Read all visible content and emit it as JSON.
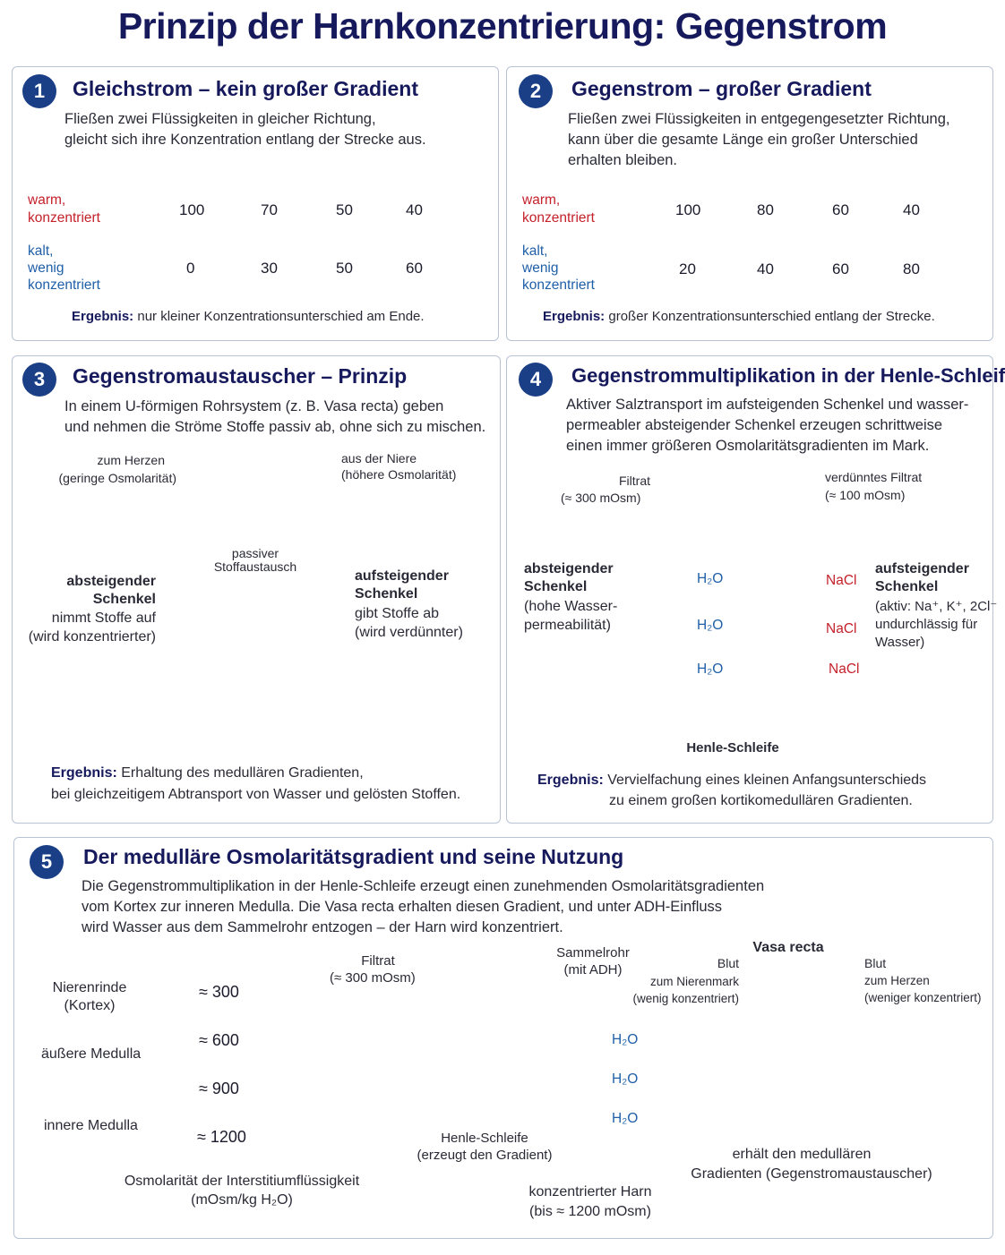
{
  "title": "Prinzip der Harnkonzentrierung: Gegenstrom",
  "colors": {
    "navy": "#16195c",
    "badge": "#1a3f86",
    "warm": "#e8474c",
    "cold": "#5aa8e6"
  },
  "p1": {
    "num": "1",
    "title": "Gleichstrom – kein großer Gradient",
    "text1": "Fließen zwei Flüssigkeiten in gleicher Richtung,",
    "text2": "gleicht sich ihre Konzentration entlang der Strecke aus.",
    "warm1": "warm,",
    "warm2": "konzentriert",
    "cold1": "kalt,",
    "cold2": "wenig",
    "cold3": "konzentriert",
    "warm_values": [
      "100",
      "70",
      "50",
      "40"
    ],
    "cold_values": [
      "0",
      "30",
      "50",
      "60"
    ],
    "result_label": "Ergebnis:",
    "result_text": "nur kleiner Konzentrationsunterschied am Ende."
  },
  "p2": {
    "num": "2",
    "title": "Gegenstrom – großer Gradient",
    "text1": "Fließen zwei Flüssigkeiten in entgegengesetzter Richtung,",
    "text2": "kann über die gesamte Länge ein großer Unterschied",
    "text3": "erhalten bleiben.",
    "warm1": "warm,",
    "warm2": "konzentriert",
    "cold1": "kalt,",
    "cold2": "wenig",
    "cold3": "konzentriert",
    "warm_values": [
      "100",
      "80",
      "60",
      "40"
    ],
    "cold_values": [
      "20",
      "40",
      "60",
      "80"
    ],
    "result_label": "Ergebnis:",
    "result_text": "großer Konzentrationsunterschied entlang der Strecke."
  },
  "p3": {
    "num": "3",
    "title": "Gegenstromaustauscher – Prinzip",
    "text1": "In einem U-förmigen Rohrsystem (z. B. Vasa recta) geben",
    "text2": "und nehmen die Ströme Stoffe passiv ab, ohne sich zu mischen.",
    "to_heart1": "zum Herzen",
    "to_heart2": "(geringe Osmolarität)",
    "from_kidney1": "aus der Niere",
    "from_kidney2": "(höhere Osmolarität)",
    "passive1": "passiver",
    "passive2": "Stoffaustausch",
    "desc_title1": "absteigender",
    "desc_title2": "Schenkel",
    "desc_text1": "nimmt Stoffe auf",
    "desc_text2": "(wird konzentrierter)",
    "asc_title1": "aufsteigender",
    "asc_title2": "Schenkel",
    "asc_text1": "gibt Stoffe ab",
    "asc_text2": "(wird verdünnter)",
    "result_label": "Ergebnis:",
    "result_text1": "Erhaltung des medullären Gradienten,",
    "result_text2": "bei gleichzeitigem Abtransport von Wasser und gelösten Stoffen."
  },
  "p4": {
    "num": "4",
    "title": "Gegenstrommultiplikation in der Henle-Schleife",
    "text1": "Aktiver Salztransport im aufsteigenden Schenkel und wasser-",
    "text2": "permeabler absteigender Schenkel erzeugen schrittweise",
    "text3": "einen immer größeren Osmolaritätsgradienten im Mark.",
    "filtrat1": "Filtrat",
    "filtrat2": "(≈ 300 mOsm)",
    "dilute1": "verdünntes Filtrat",
    "dilute2": "(≈ 100 mOsm)",
    "desc_title1": "absteigender",
    "desc_title2": "Schenkel",
    "desc_text1": "(hohe Wasser-",
    "desc_text2": "permeabilität)",
    "asc_title1": "aufsteigender",
    "asc_title2": "Schenkel",
    "asc_text1": "(aktiv: Na⁺, K⁺, 2Cl⁻",
    "asc_text2": "undurchlässig für",
    "asc_text3": "Wasser)",
    "h2o": "H₂O",
    "nacl": "NaCl",
    "loop_label": "Henle-Schleife",
    "result_label": "Ergebnis:",
    "result_text1": "Vervielfachung eines kleinen Anfangsunterschieds",
    "result_text2": "zu einem großen kortikomedullären Gradienten."
  },
  "p5": {
    "num": "5",
    "title": "Der medulläre Osmolaritätsgradient und seine Nutzung",
    "text1": "Die Gegenstrommultiplikation in der Henle-Schleife erzeugt einen zunehmenden Osmolaritätsgradienten",
    "text2": "vom Kortex zur inneren Medulla. Die Vasa recta erhalten diesen Gradient, und unter ADH-Einfluss",
    "text3": "wird Wasser aus dem Sammelrohr entzogen – der Harn wird konzentriert.",
    "zones": [
      {
        "name1": "Nierenrinde",
        "name2": "(Kortex)",
        "value": "≈ 300"
      },
      {
        "name1": "äußere Medulla",
        "name2": "",
        "value": "≈ 600"
      },
      {
        "name1": "",
        "name2": "",
        "value": "≈ 900"
      },
      {
        "name1": "innere Medulla",
        "name2": "",
        "value": "≈ 1200"
      }
    ],
    "axis1": "Osmolarität der Interstitiumflüssigkeit",
    "axis2": "(mOsm/kg H₂O)",
    "filtrat1": "Filtrat",
    "filtrat2": "(≈ 300 mOsm)",
    "collecting1": "Sammelrohr",
    "collecting2": "(mit ADH)",
    "loop1": "Henle-Schleife",
    "loop2": "(erzeugt den Gradient)",
    "urine1": "konzentrierter Harn",
    "urine2": "(bis ≈ 1200 mOsm)",
    "h2o": "H₂O",
    "vasa_title": "Vasa recta",
    "blood_in1": "Blut",
    "blood_in2": "zum Nierenmark",
    "blood_in3": "(wenig konzentriert)",
    "blood_out1": "Blut",
    "blood_out2": "zum Herzen",
    "blood_out3": "(weniger konzentriert)",
    "vasa_text1": "erhält den medullären",
    "vasa_text2": "Gradienten (Gegenstromaustauscher)"
  }
}
